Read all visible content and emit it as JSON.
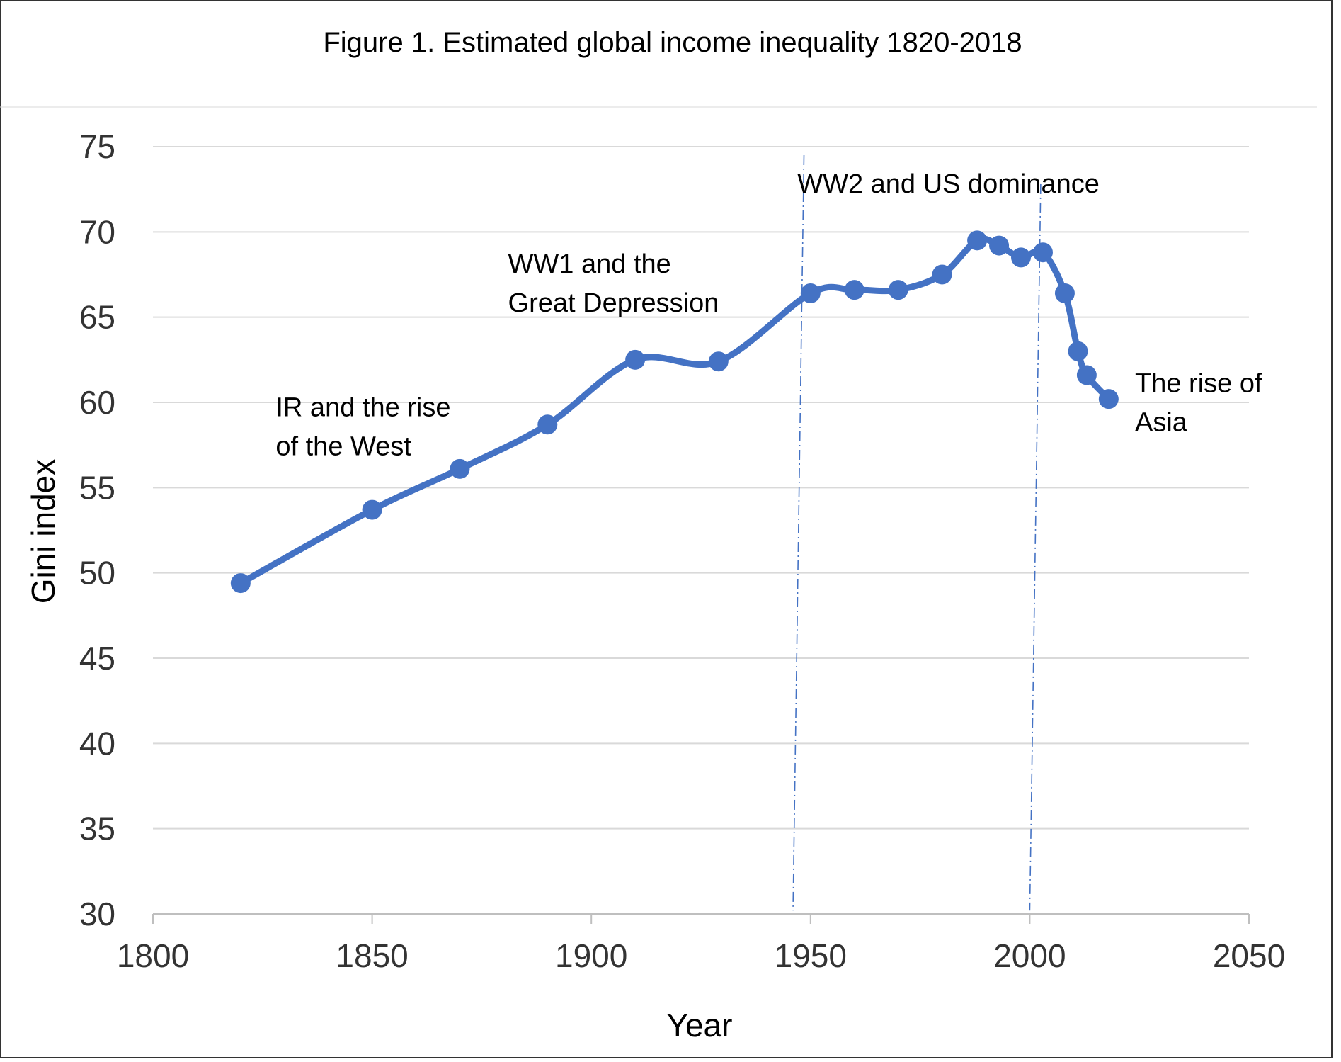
{
  "chart_data": {
    "type": "line",
    "title": "Figure 1. Estimated global income inequality 1820-2018",
    "xlabel": "Year",
    "ylabel": "Gini index",
    "xlim": [
      1800,
      2050
    ],
    "ylim": [
      30,
      75
    ],
    "xticks": [
      "1800",
      "1850",
      "1900",
      "1950",
      "2000",
      "2050"
    ],
    "yticks": [
      "30",
      "35",
      "40",
      "45",
      "50",
      "55",
      "60",
      "65",
      "70",
      "75"
    ],
    "grid": true,
    "series": [
      {
        "color": "#4472C4",
        "x": [
          1820,
          1850,
          1870,
          1890,
          1910,
          1929,
          1950,
          1960,
          1970,
          1980,
          1988,
          1993,
          1998,
          2003,
          2008,
          2011,
          2013,
          2018
        ],
        "y": [
          49.4,
          53.7,
          56.1,
          58.7,
          62.5,
          62.4,
          66.4,
          66.6,
          66.6,
          67.5,
          69.5,
          69.2,
          68.5,
          68.8,
          66.4,
          63.0,
          61.6,
          60.2
        ]
      }
    ],
    "annotations": [
      {
        "lines": [
          "IR and the rise",
          "of the West"
        ],
        "x": 1828,
        "y": 59.2
      },
      {
        "lines": [
          "WW1 and the",
          "Great Depression"
        ],
        "x": 1881,
        "y": 67.6
      },
      {
        "lines": [
          "WW2 and US dominance"
        ],
        "x": 1947,
        "y": 72.3
      },
      {
        "lines": [
          "The rise of",
          "Asia"
        ],
        "x": 2024,
        "y": 60.6
      }
    ],
    "vlines": [
      {
        "x1": 1948.5,
        "y1": 74.5,
        "x2": 1946,
        "y2": 30.2
      },
      {
        "x1": 2002.5,
        "y1": 72.8,
        "x2": 2000,
        "y2": 30.2
      }
    ]
  }
}
